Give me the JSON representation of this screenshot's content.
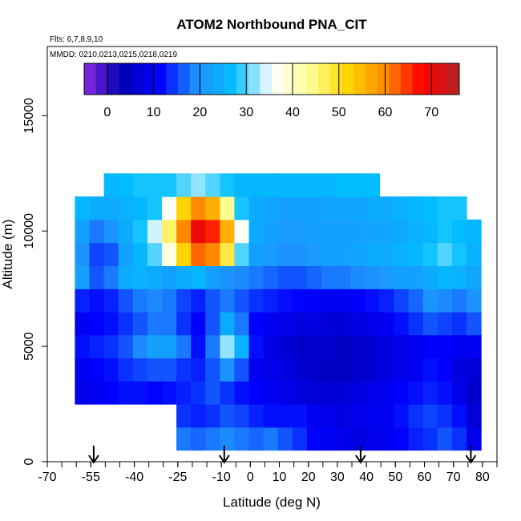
{
  "chart_data": {
    "type": "heatmap",
    "title": "ATOM2 Northbound PNA_CIT",
    "subtitle_flights": "Flts: 6,7,8,9,10",
    "subtitle_dates": "MMDD: 0210,0213,0215,0218,0219",
    "xlabel": "Latitude (deg N)",
    "ylabel": "Altitude (m)",
    "xlim": [
      -70,
      85
    ],
    "ylim": [
      0,
      18000
    ],
    "x_ticks": [
      -70,
      -55,
      -40,
      -25,
      -10,
      0,
      10,
      20,
      30,
      40,
      50,
      60,
      70,
      80
    ],
    "y_ticks": [
      0,
      5000,
      10000,
      15000
    ],
    "colorbar": {
      "range": [
        -5,
        76
      ],
      "ticks": [
        0,
        10,
        20,
        30,
        40,
        50,
        60,
        70
      ],
      "colors": [
        "#8a2be2",
        "#0000b0",
        "#0000ff",
        "#1e90ff",
        "#00bfff",
        "#ffffff",
        "#ffff99",
        "#ffd700",
        "#ff8c00",
        "#ff0000",
        "#b22222"
      ]
    },
    "arrow_latitudes": [
      -54,
      -9,
      38,
      76
    ],
    "lat_bins": [
      -63,
      -58,
      -53,
      -48,
      -43,
      -38,
      -33,
      -28,
      -23,
      -18,
      -13,
      -8,
      -3,
      2,
      7,
      12,
      17,
      22,
      27,
      32,
      37,
      42,
      47,
      52,
      57,
      62,
      67,
      72,
      77
    ],
    "alt_bins": [
      1000,
      2000,
      3000,
      4000,
      5000,
      6000,
      7000,
      8000,
      9000,
      10000,
      11000,
      12000
    ],
    "values": [
      [
        null,
        null,
        null,
        null,
        null,
        null,
        null,
        null,
        18,
        17,
        18,
        19,
        18,
        17,
        18,
        16,
        14,
        11,
        10,
        9,
        8,
        9,
        10,
        11,
        13,
        14,
        16,
        14,
        9
      ],
      [
        null,
        null,
        null,
        null,
        null,
        null,
        null,
        null,
        14,
        13,
        14,
        16,
        15,
        13,
        12,
        12,
        12,
        10,
        9,
        8,
        9,
        10,
        10,
        12,
        14,
        15,
        14,
        12,
        7
      ],
      [
        null,
        9,
        10,
        11,
        12,
        12,
        11,
        12,
        13,
        14,
        16,
        14,
        12,
        11,
        10,
        9,
        8,
        7,
        7,
        7,
        8,
        9,
        10,
        11,
        12,
        13,
        12,
        9,
        6
      ],
      [
        null,
        10,
        11,
        12,
        14,
        15,
        16,
        16,
        14,
        13,
        16,
        20,
        16,
        10,
        9,
        8,
        7,
        6,
        5,
        5,
        6,
        7,
        8,
        9,
        10,
        12,
        11,
        8,
        7
      ],
      [
        null,
        12,
        13,
        14,
        16,
        19,
        22,
        22,
        18,
        12,
        18,
        32,
        25,
        12,
        9,
        7,
        6,
        6,
        6,
        5,
        6,
        7,
        8,
        9,
        10,
        11,
        11,
        10,
        10
      ],
      [
        null,
        10,
        11,
        12,
        14,
        16,
        18,
        18,
        14,
        11,
        16,
        24,
        18,
        11,
        10,
        9,
        8,
        8,
        7,
        7,
        8,
        9,
        10,
        12,
        14,
        16,
        15,
        14,
        16
      ],
      [
        null,
        13,
        12,
        13,
        16,
        18,
        19,
        18,
        15,
        13,
        16,
        18,
        16,
        14,
        13,
        12,
        11,
        11,
        10,
        10,
        11,
        12,
        13,
        15,
        17,
        20,
        19,
        18,
        20
      ],
      [
        null,
        22,
        16,
        18,
        24,
        25,
        24,
        22,
        24,
        26,
        22,
        20,
        19,
        18,
        17,
        16,
        16,
        17,
        18,
        18,
        19,
        20,
        21,
        22,
        22,
        24,
        26,
        25,
        23
      ],
      [
        null,
        20,
        15,
        16,
        22,
        26,
        30,
        38,
        52,
        62,
        60,
        48,
        30,
        22,
        21,
        20,
        20,
        21,
        22,
        22,
        23,
        24,
        24,
        25,
        26,
        28,
        30,
        28,
        25
      ],
      [
        null,
        22,
        18,
        20,
        24,
        28,
        34,
        46,
        60,
        70,
        66,
        56,
        36,
        24,
        22,
        21,
        21,
        22,
        22,
        22,
        22,
        23,
        23,
        24,
        25,
        26,
        28,
        27,
        26
      ],
      [
        null,
        26,
        24,
        24,
        25,
        26,
        28,
        36,
        52,
        60,
        56,
        44,
        28,
        24,
        23,
        22,
        22,
        22,
        23,
        23,
        23,
        24,
        24,
        25,
        26,
        27,
        28,
        28,
        null
      ],
      [
        null,
        null,
        null,
        26,
        27,
        28,
        28,
        28,
        30,
        32,
        30,
        28,
        26,
        26,
        26,
        26,
        26,
        26,
        26,
        27,
        27,
        27,
        null,
        null,
        null,
        null,
        null,
        null,
        null
      ]
    ]
  }
}
